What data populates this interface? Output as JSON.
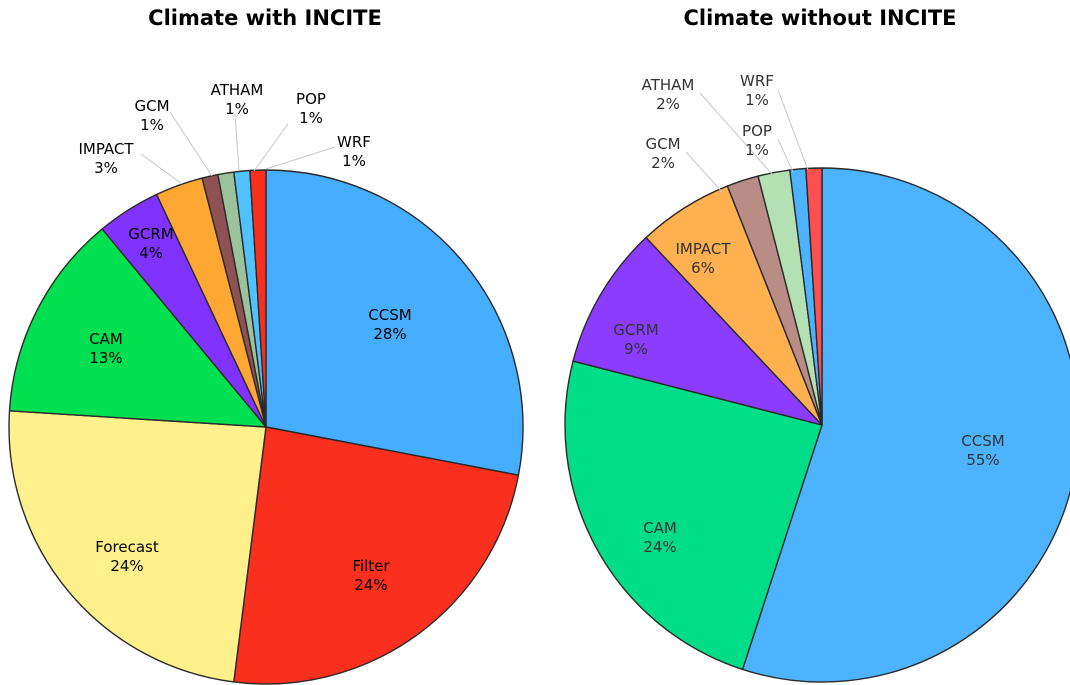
{
  "chart_data": [
    {
      "type": "pie",
      "title": "Climate with INCITE",
      "categories": [
        "CCSM",
        "Filter",
        "Forecast",
        "CAM",
        "GCRM",
        "IMPACT",
        "GCM",
        "ATHAM",
        "POP",
        "WRF"
      ],
      "values": [
        28,
        24,
        24,
        13,
        4,
        3,
        1,
        1,
        1,
        1
      ],
      "labels": [
        "28%",
        "24%",
        "24%",
        "13%",
        "4%",
        "3%",
        "1%",
        "1%",
        "1%",
        "1%"
      ],
      "colors": [
        "#46adff",
        "#fb2f1e",
        "#fef08a",
        "#00e050",
        "#8033ff",
        "#ffa733",
        "#8e5252",
        "#9cc29c",
        "#4fc2ff",
        "#fb2f1e"
      ]
    },
    {
      "type": "pie",
      "title": "Climate without INCITE",
      "categories": [
        "CCSM",
        "CAM",
        "GCRM",
        "IMPACT",
        "GCM",
        "ATHAM",
        "POP",
        "WRF"
      ],
      "values": [
        55,
        24,
        9,
        6,
        2,
        2,
        1,
        1
      ],
      "labels": [
        "55%",
        "24%",
        "9%",
        "6%",
        "2%",
        "2%",
        "1%",
        "1%"
      ],
      "colors": [
        "#4db3ff",
        "#00dd88",
        "#8b3cff",
        "#ffb04f",
        "#b98c86",
        "#b4e1b4",
        "#4db3ff",
        "#ff4f4f"
      ]
    }
  ]
}
